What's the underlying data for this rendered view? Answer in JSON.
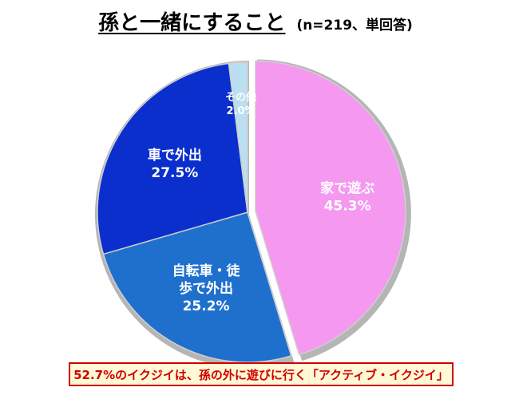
{
  "chart_data": {
    "type": "pie",
    "title": "孫と一緒にすること",
    "subtitle": "(n=219、単回答)",
    "slices": [
      {
        "label": "家で遊ぶ",
        "value": 45.3,
        "value_label": "45.3%",
        "color": "#f598f0"
      },
      {
        "label": "自転車・徒\n歩で外出",
        "value": 25.2,
        "value_label": "25.2%",
        "color": "#1f70cc"
      },
      {
        "label": "車で外出",
        "value": 27.5,
        "value_label": "27.5%",
        "color": "#0a2fcd"
      },
      {
        "label": "その他",
        "value": 2.0,
        "value_label": "2.0%",
        "color": "#b9dff0"
      }
    ],
    "start_angle_deg": 0,
    "direction": "clockwise",
    "exploded_slice": "家で遊ぶ",
    "legend": "none"
  },
  "footnote": "52.7%のイクジイは、孫の外に遊びに行く「アクティブ・イクジイ」",
  "colors": {
    "footnote_text": "#d00000",
    "footnote_bg": "#fff9d6",
    "rim": "#b5b5b5"
  }
}
